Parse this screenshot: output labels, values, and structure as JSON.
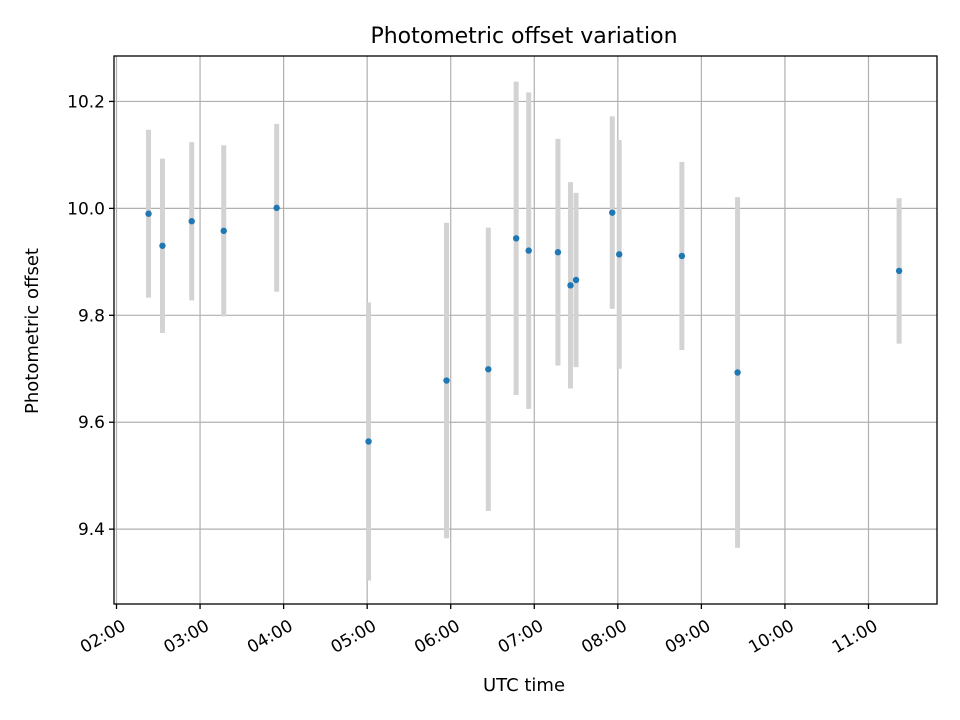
{
  "chart_data": {
    "type": "scatter",
    "title": "Photometric offset variation",
    "xlabel": "UTC time",
    "ylabel": "Photometric offset",
    "grid": true,
    "xlim_hours": [
      1.97,
      11.82
    ],
    "ylim": [
      9.26,
      10.285
    ],
    "x_ticks": [
      "02:00",
      "03:00",
      "04:00",
      "05:00",
      "06:00",
      "07:00",
      "08:00",
      "09:00",
      "10:00",
      "11:00"
    ],
    "x_tick_hours": [
      2,
      3,
      4,
      5,
      6,
      7,
      8,
      9,
      10,
      11
    ],
    "y_ticks": [
      9.4,
      9.6,
      9.8,
      10.0,
      10.2
    ],
    "y_tick_labels": [
      "9.4",
      "9.6",
      "9.8",
      "10.0",
      "10.2"
    ],
    "marker_color": "#1f77b4",
    "errorbar_color": "#d3d3d3",
    "points": [
      {
        "x": "02:23",
        "y": 9.99,
        "yerr": 0.157
      },
      {
        "x": "02:33",
        "y": 9.93,
        "yerr": 0.163
      },
      {
        "x": "02:54",
        "y": 9.976,
        "yerr": 0.148
      },
      {
        "x": "03:17",
        "y": 9.958,
        "yerr": 0.16
      },
      {
        "x": "03:55",
        "y": 10.001,
        "yerr": 0.157
      },
      {
        "x": "05:01",
        "y": 9.564,
        "yerr": 0.26
      },
      {
        "x": "05:57",
        "y": 9.678,
        "yerr": 0.295
      },
      {
        "x": "06:27",
        "y": 9.699,
        "yerr": 0.265
      },
      {
        "x": "06:47",
        "y": 9.944,
        "yerr": 0.293
      },
      {
        "x": "06:56",
        "y": 9.921,
        "yerr": 0.296
      },
      {
        "x": "07:17",
        "y": 9.918,
        "yerr": 0.212
      },
      {
        "x": "07:26",
        "y": 9.856,
        "yerr": 0.193
      },
      {
        "x": "07:30",
        "y": 9.866,
        "yerr": 0.163
      },
      {
        "x": "07:56",
        "y": 9.992,
        "yerr": 0.18
      },
      {
        "x": "08:01",
        "y": 9.914,
        "yerr": 0.214
      },
      {
        "x": "08:46",
        "y": 9.911,
        "yerr": 0.176
      },
      {
        "x": "09:26",
        "y": 9.693,
        "yerr": 0.328
      },
      {
        "x": "11:22",
        "y": 9.883,
        "yerr": 0.136
      }
    ]
  }
}
